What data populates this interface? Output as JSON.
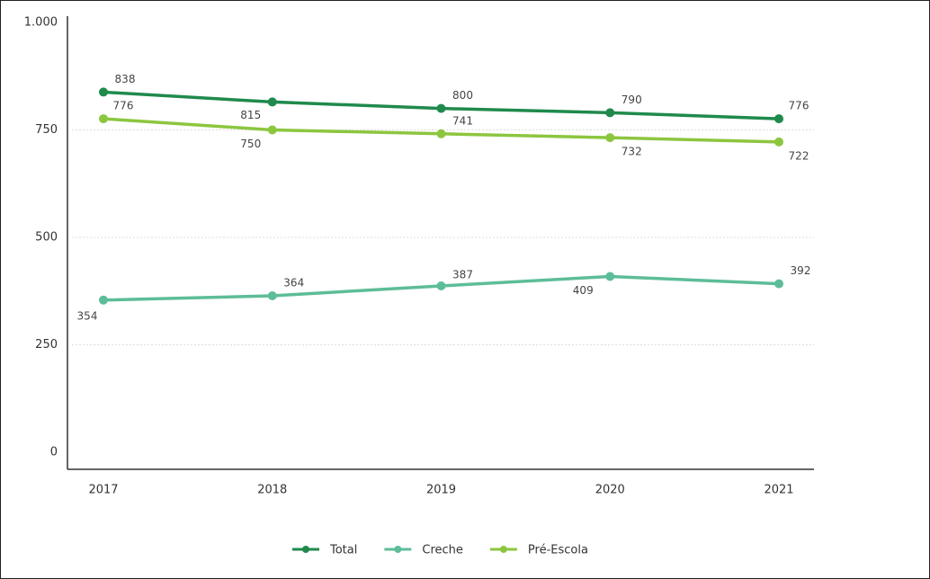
{
  "chart_data": {
    "type": "line",
    "categories": [
      "2017",
      "2018",
      "2019",
      "2020",
      "2021"
    ],
    "series": [
      {
        "name": "Total",
        "color": "#1f8a4c",
        "values": [
          838,
          815,
          800,
          790,
          776
        ]
      },
      {
        "name": "Creche",
        "color": "#5dbd98",
        "values": [
          354,
          364,
          387,
          409,
          392
        ]
      },
      {
        "name": "Pré-Escola",
        "color": "#8cc63f",
        "values": [
          776,
          750,
          741,
          732,
          722
        ]
      }
    ],
    "ylim": [
      0,
      1000
    ],
    "yticks": [
      0,
      250,
      500,
      750,
      {
        "value": 1000,
        "label": "1.000"
      }
    ],
    "grid": true,
    "legend": "bottom"
  }
}
